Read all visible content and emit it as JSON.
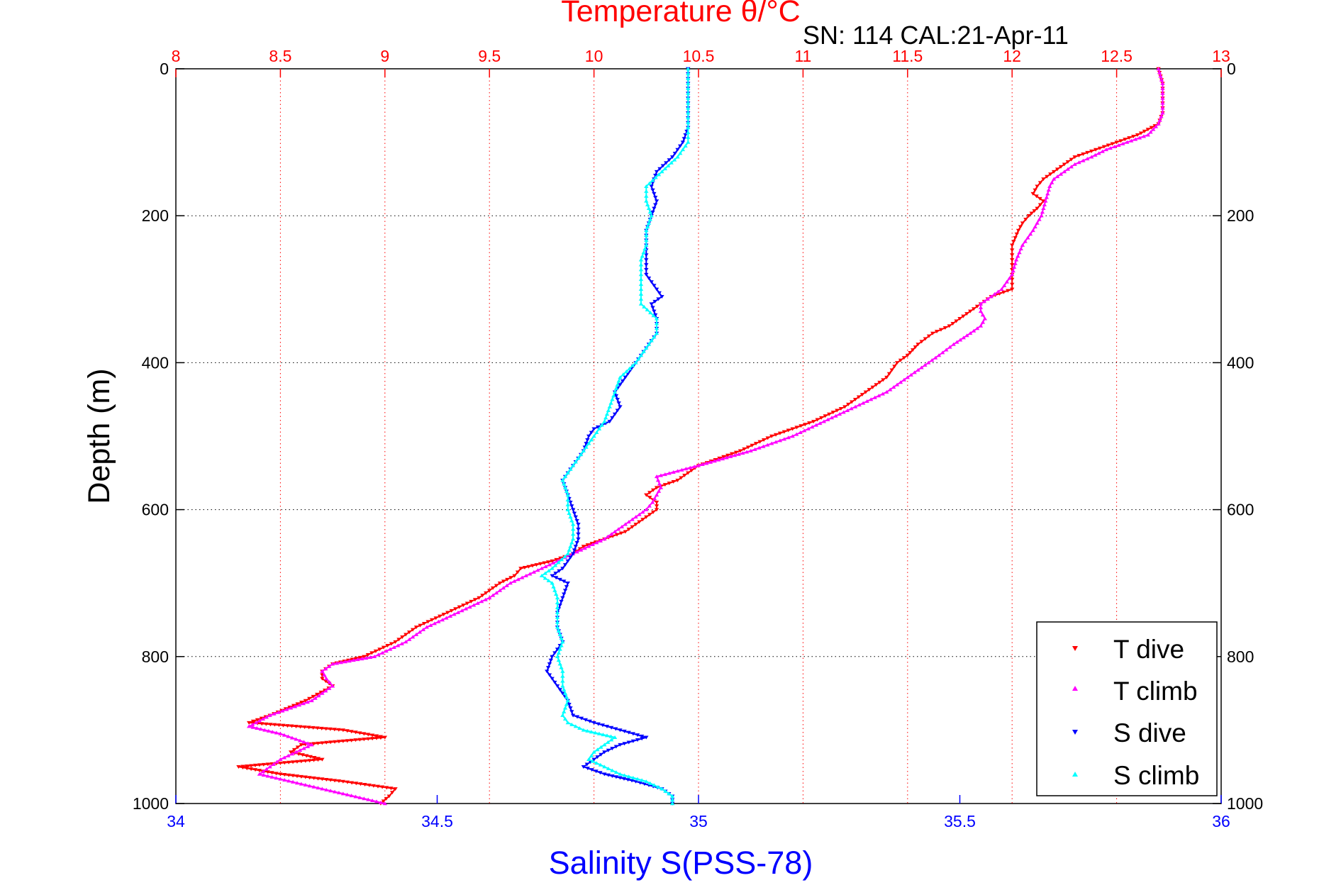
{
  "chart_data": {
    "type": "scatter",
    "title": "Temperature θ/°C",
    "subtitle": "SN: 114  CAL:21-Apr-11",
    "xlabel": "Salinity S(PSS-78)",
    "ylabel": "Depth (m)",
    "x_temperature": {
      "label": "Temperature θ/°C",
      "lim": [
        8,
        13
      ],
      "ticks": [
        "8",
        "8.5",
        "9",
        "9.5",
        "10",
        "10.5",
        "11",
        "11.5",
        "12",
        "12.5",
        "13"
      ],
      "color": "#ff0000"
    },
    "x_salinity": {
      "label": "Salinity S(PSS-78)",
      "lim": [
        34,
        36
      ],
      "ticks": [
        "34",
        "34.5",
        "35",
        "35.5",
        "36"
      ],
      "color": "#0000ff"
    },
    "y_depth": {
      "lim": [
        0,
        1000
      ],
      "reversed": true,
      "ticks": [
        "0",
        "200",
        "400",
        "600",
        "800",
        "1000"
      ]
    },
    "grid": true,
    "legend_position": "bottom-right",
    "series": [
      {
        "name": "T dive",
        "axis": "temperature",
        "marker": "triangle-down",
        "color": "#ff0000",
        "depth": [
          0,
          20,
          40,
          60,
          75,
          90,
          100,
          110,
          120,
          130,
          140,
          150,
          160,
          170,
          180,
          190,
          200,
          210,
          220,
          240,
          260,
          280,
          300,
          310,
          320,
          330,
          340,
          350,
          360,
          375,
          390,
          400,
          420,
          440,
          460,
          480,
          500,
          520,
          540,
          560,
          570,
          580,
          590,
          600,
          610,
          620,
          630,
          640,
          650,
          660,
          670,
          680,
          690,
          700,
          720,
          740,
          760,
          780,
          800,
          810,
          820,
          830,
          840,
          860,
          880,
          890,
          900,
          910,
          920,
          930,
          940,
          950,
          960,
          970,
          980,
          990,
          1000
        ],
        "values": [
          12.7,
          12.72,
          12.72,
          12.72,
          12.7,
          12.6,
          12.5,
          12.4,
          12.3,
          12.25,
          12.2,
          12.15,
          12.12,
          12.1,
          12.15,
          12.12,
          12.08,
          12.05,
          12.03,
          12.0,
          12.0,
          12.0,
          12.0,
          11.9,
          11.85,
          11.8,
          11.75,
          11.7,
          11.62,
          11.55,
          11.5,
          11.45,
          11.4,
          11.3,
          11.2,
          11.05,
          10.85,
          10.7,
          10.5,
          10.4,
          10.3,
          10.25,
          10.3,
          10.3,
          10.25,
          10.2,
          10.15,
          10.05,
          9.95,
          9.9,
          9.8,
          9.65,
          9.62,
          9.55,
          9.45,
          9.3,
          9.15,
          9.05,
          8.9,
          8.75,
          8.7,
          8.7,
          8.75,
          8.62,
          8.45,
          8.35,
          8.8,
          9.0,
          8.6,
          8.55,
          8.7,
          8.3,
          8.5,
          8.8,
          9.05,
          9.02,
          8.98
        ]
      },
      {
        "name": "T climb",
        "axis": "temperature",
        "marker": "triangle-up",
        "color": "#ff00ff",
        "depth": [
          0,
          20,
          40,
          60,
          75,
          90,
          100,
          110,
          120,
          130,
          140,
          150,
          160,
          170,
          180,
          190,
          200,
          220,
          240,
          260,
          280,
          300,
          310,
          320,
          330,
          340,
          350,
          360,
          375,
          390,
          400,
          420,
          440,
          460,
          480,
          500,
          520,
          540,
          555,
          570,
          580,
          590,
          600,
          620,
          640,
          660,
          680,
          700,
          720,
          740,
          760,
          780,
          800,
          810,
          820,
          830,
          840,
          860,
          880,
          895,
          905,
          920,
          940,
          960,
          980,
          1000
        ],
        "values": [
          12.7,
          12.72,
          12.72,
          12.72,
          12.7,
          12.65,
          12.55,
          12.45,
          12.38,
          12.3,
          12.25,
          12.2,
          12.18,
          12.17,
          12.16,
          12.15,
          12.14,
          12.1,
          12.05,
          12.02,
          12.0,
          11.95,
          11.9,
          11.85,
          11.85,
          11.87,
          11.85,
          11.8,
          11.72,
          11.65,
          11.6,
          11.5,
          11.4,
          11.25,
          11.1,
          10.95,
          10.75,
          10.5,
          10.3,
          10.32,
          10.3,
          10.28,
          10.25,
          10.15,
          10.05,
          9.9,
          9.75,
          9.6,
          9.5,
          9.35,
          9.2,
          9.1,
          8.95,
          8.75,
          8.7,
          8.72,
          8.75,
          8.65,
          8.45,
          8.35,
          8.5,
          8.65,
          8.5,
          8.4,
          8.7,
          9.0
        ]
      },
      {
        "name": "S dive",
        "axis": "salinity",
        "marker": "triangle-down",
        "color": "#0000ff",
        "depth": [
          0,
          20,
          40,
          60,
          80,
          100,
          120,
          140,
          160,
          180,
          200,
          220,
          240,
          260,
          280,
          300,
          310,
          320,
          340,
          360,
          380,
          400,
          420,
          440,
          460,
          480,
          490,
          500,
          520,
          540,
          560,
          580,
          600,
          620,
          640,
          660,
          680,
          690,
          700,
          720,
          740,
          760,
          780,
          800,
          820,
          840,
          860,
          880,
          890,
          900,
          910,
          920,
          930,
          940,
          950,
          960,
          970,
          980,
          990,
          1000
        ],
        "values": [
          34.98,
          34.98,
          34.98,
          34.98,
          34.98,
          34.97,
          34.95,
          34.92,
          34.91,
          34.92,
          34.91,
          34.9,
          34.9,
          34.9,
          34.9,
          34.92,
          34.93,
          34.91,
          34.92,
          34.92,
          34.9,
          34.88,
          34.86,
          34.84,
          34.85,
          34.83,
          34.8,
          34.79,
          34.78,
          34.76,
          34.74,
          34.75,
          34.76,
          34.77,
          34.77,
          34.76,
          34.74,
          34.72,
          34.75,
          34.74,
          34.73,
          34.73,
          34.74,
          34.72,
          34.71,
          34.73,
          34.75,
          34.76,
          34.8,
          34.85,
          34.9,
          34.85,
          34.82,
          34.8,
          34.78,
          34.82,
          34.88,
          34.93,
          34.95,
          34.95
        ]
      },
      {
        "name": "S climb",
        "axis": "salinity",
        "marker": "triangle-up",
        "color": "#00ffff",
        "depth": [
          0,
          20,
          40,
          60,
          80,
          100,
          120,
          140,
          160,
          180,
          200,
          220,
          240,
          260,
          280,
          300,
          320,
          340,
          360,
          380,
          400,
          420,
          440,
          460,
          480,
          500,
          520,
          540,
          560,
          580,
          600,
          620,
          640,
          660,
          680,
          690,
          700,
          720,
          740,
          760,
          780,
          800,
          820,
          840,
          860,
          880,
          890,
          900,
          910,
          920,
          930,
          940,
          950,
          960,
          970,
          980,
          990,
          1000
        ],
        "values": [
          34.98,
          34.98,
          34.98,
          34.98,
          34.98,
          34.98,
          34.96,
          34.93,
          34.9,
          34.9,
          34.91,
          34.9,
          34.9,
          34.89,
          34.89,
          34.89,
          34.89,
          34.92,
          34.92,
          34.9,
          34.88,
          34.85,
          34.84,
          34.83,
          34.82,
          34.8,
          34.78,
          34.76,
          34.74,
          34.75,
          34.75,
          34.76,
          34.76,
          34.75,
          34.72,
          34.7,
          34.72,
          34.73,
          34.73,
          34.73,
          34.74,
          34.73,
          34.74,
          34.74,
          34.75,
          34.74,
          34.75,
          34.78,
          34.84,
          34.82,
          34.8,
          34.79,
          34.82,
          34.85,
          34.9,
          34.93,
          34.95,
          34.95
        ]
      }
    ]
  }
}
